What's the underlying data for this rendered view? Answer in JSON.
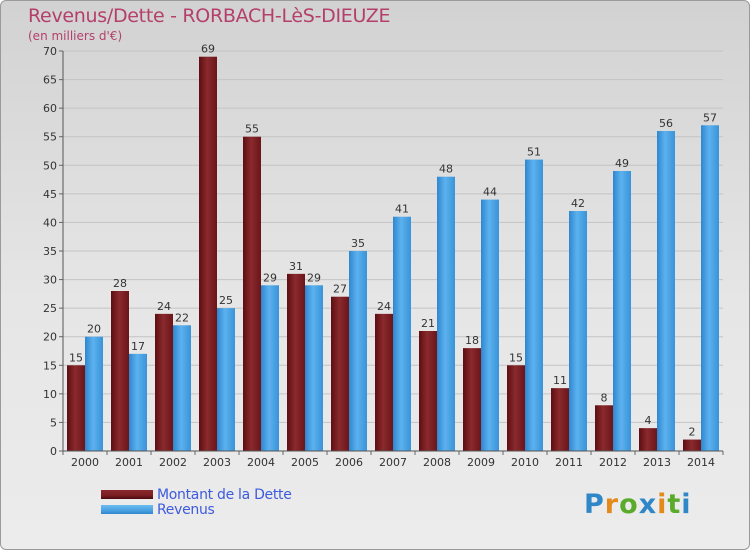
{
  "chart_data": {
    "type": "bar",
    "title": "Revenus/Dette - RORBACH-LèS-DIEUZE",
    "subtitle": "(en milliers d'€)",
    "categories": [
      "2000",
      "2001",
      "2002",
      "2003",
      "2004",
      "2005",
      "2006",
      "2007",
      "2008",
      "2009",
      "2010",
      "2011",
      "2012",
      "2013",
      "2014"
    ],
    "series": [
      {
        "name": "Montant de la Dette",
        "color": "#7a1e22",
        "values": [
          15,
          28,
          24,
          69,
          55,
          31,
          27,
          24,
          21,
          18,
          15,
          11,
          8,
          4,
          2
        ]
      },
      {
        "name": "Revenus",
        "color": "#4aa1e0",
        "values": [
          20,
          17,
          22,
          25,
          29,
          29,
          35,
          41,
          48,
          44,
          51,
          42,
          49,
          56,
          57
        ]
      }
    ],
    "ylim": [
      0,
      70
    ],
    "yticks": [
      0,
      5,
      10,
      15,
      20,
      25,
      30,
      35,
      40,
      45,
      50,
      55,
      60,
      65,
      70
    ],
    "grid": true,
    "legend_position": "bottom-left"
  },
  "logo": {
    "letters": [
      {
        "char": "P",
        "color": "#2f87c8"
      },
      {
        "char": "r",
        "color": "#e38a1b"
      },
      {
        "char": "o",
        "color": "#5aab2c"
      },
      {
        "char": "x",
        "color": "#2f87c8"
      },
      {
        "char": "i",
        "color": "#e38a1b"
      },
      {
        "char": "t",
        "color": "#5aab2c"
      },
      {
        "char": "i",
        "color": "#2f87c8"
      }
    ]
  }
}
